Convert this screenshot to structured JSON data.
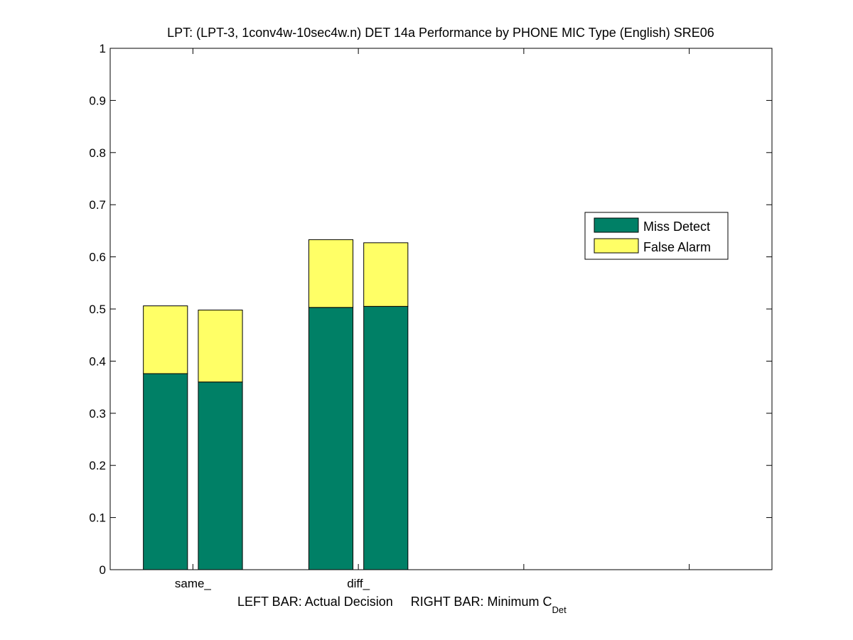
{
  "chart_data": {
    "type": "bar",
    "stacked": true,
    "title": "LPT: (LPT-3, 1conv4w-10sec4w.n) DET 14a Performance by PHONE MIC Type (English) SRE06",
    "xlabel_main": "LEFT BAR: Actual Decision     RIGHT BAR: Minimum C",
    "xlabel_sub": "Det",
    "ylim": [
      0,
      1
    ],
    "yticks": [
      "0",
      "0.1",
      "0.2",
      "0.3",
      "0.4",
      "0.5",
      "0.6",
      "0.7",
      "0.8",
      "0.9",
      "1"
    ],
    "categories": [
      "same_",
      "diff_"
    ],
    "bars_per_category": [
      "Actual Decision",
      "Minimum C_Det"
    ],
    "series": [
      {
        "name": "Miss Detect",
        "color": "#008066",
        "values": [
          [
            0.376,
            0.36
          ],
          [
            0.503,
            0.505
          ]
        ]
      },
      {
        "name": "False Alarm",
        "color": "#ffff66",
        "values": [
          [
            0.13,
            0.138
          ],
          [
            0.13,
            0.122
          ]
        ]
      }
    ],
    "legend_position": "right",
    "grid": false
  }
}
